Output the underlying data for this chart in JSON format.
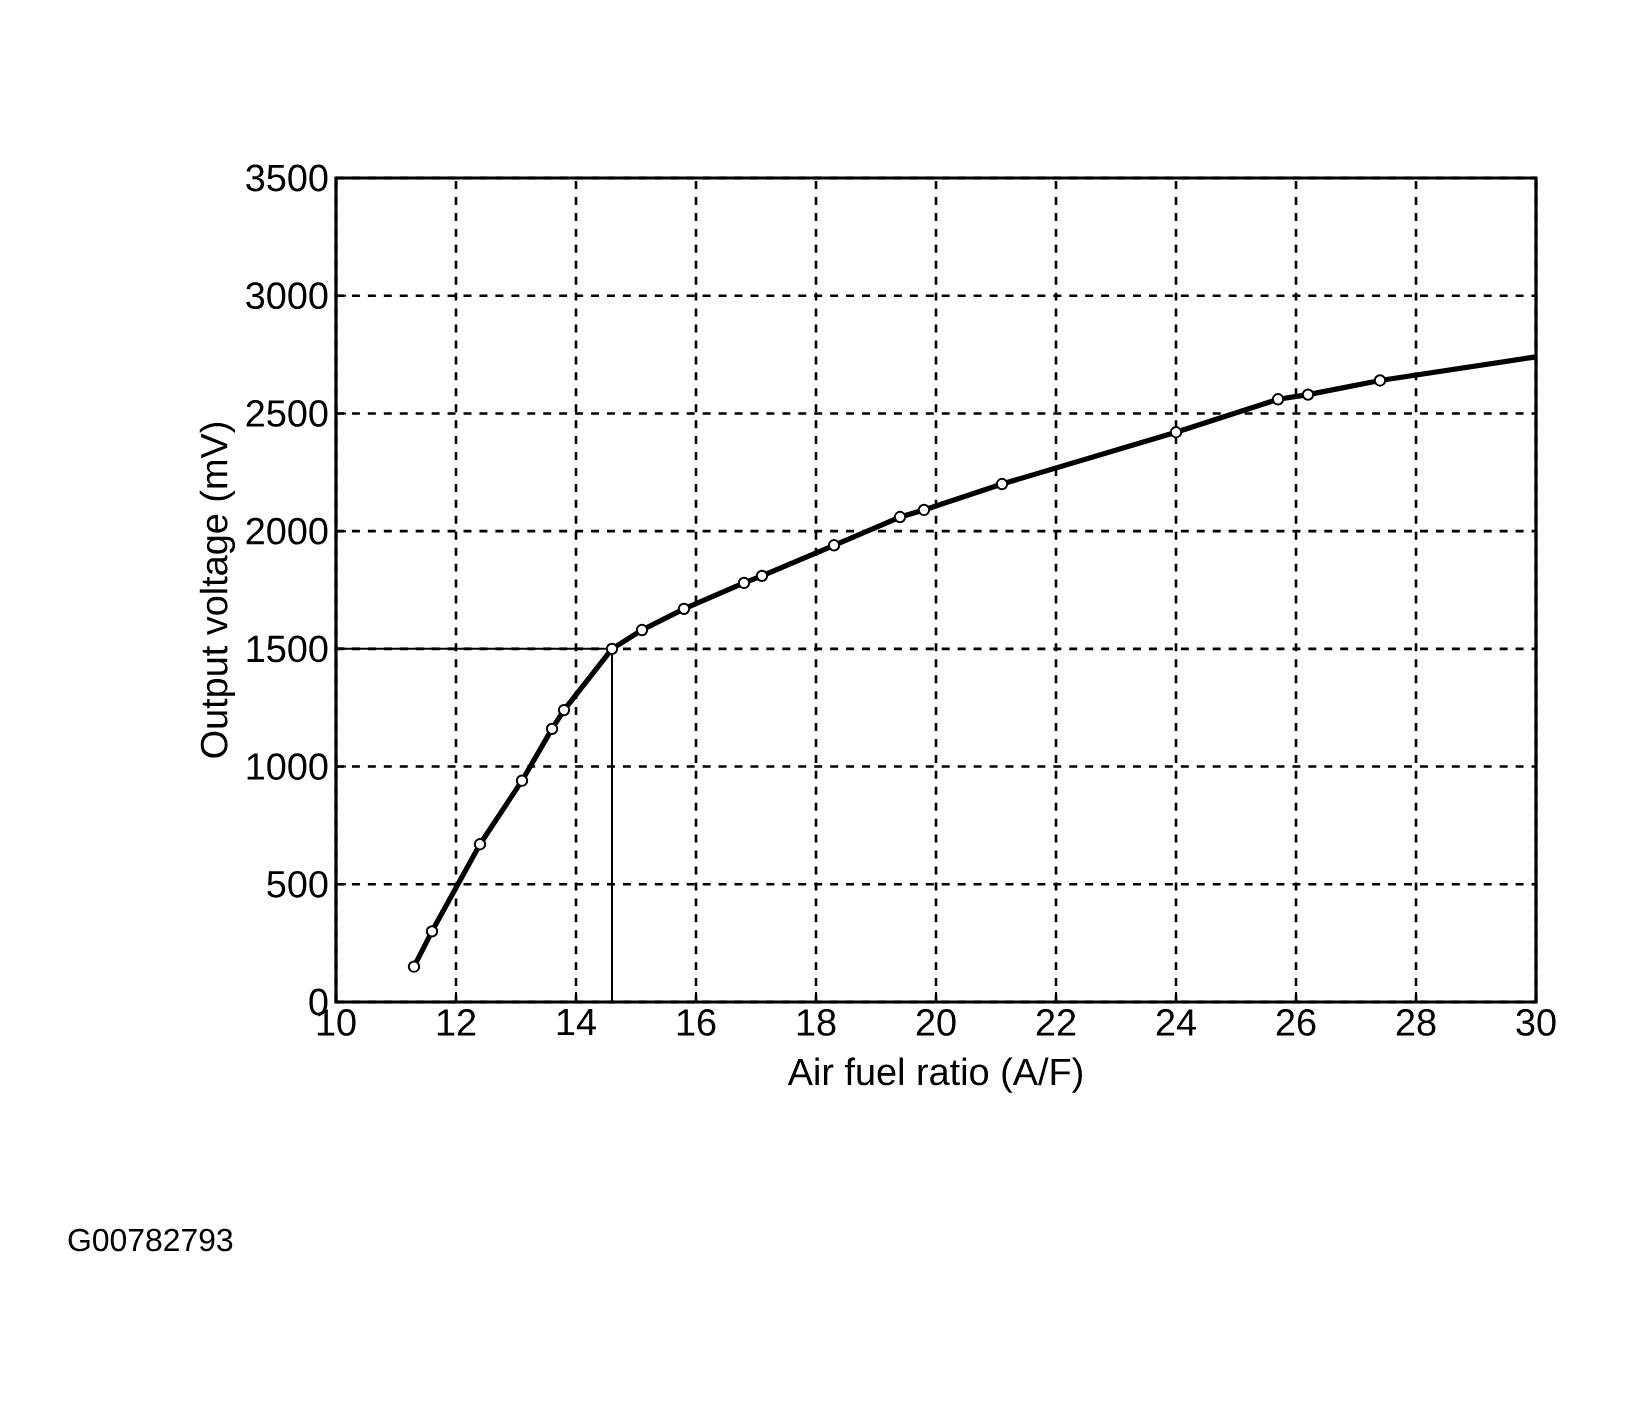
{
  "chart_data": {
    "type": "line",
    "xlabel": "Air fuel ratio (A/F)",
    "ylabel": "Output voltage (mV)",
    "xlim": [
      10,
      30
    ],
    "ylim": [
      0,
      3500
    ],
    "xticks": [
      10,
      12,
      14,
      16,
      18,
      20,
      22,
      24,
      26,
      28,
      30
    ],
    "yticks": [
      0,
      500,
      1000,
      1500,
      2000,
      2500,
      3000,
      3500
    ],
    "grid": true,
    "series": [
      {
        "color": "#000000",
        "marker": "circle",
        "x": [
          11.3,
          11.6,
          12.4,
          13.1,
          13.6,
          13.8,
          14.6,
          15.1,
          15.8,
          16.8,
          17.1,
          18.3,
          19.4,
          19.8,
          21.1,
          24.0,
          25.7,
          26.2,
          27.4
        ],
        "values": [
          150,
          300,
          670,
          940,
          1160,
          1240,
          1500,
          1580,
          1670,
          1780,
          1810,
          1940,
          2060,
          2090,
          2200,
          2420,
          2560,
          2580,
          2640
        ]
      },
      {
        "color": "#000000",
        "marker": "none",
        "x": [
          27.4,
          30
        ],
        "values": [
          2640,
          2740
        ]
      },
      {
        "color": "#000000",
        "marker": "none",
        "x": [
          10,
          14.6,
          14.6
        ],
        "values": [
          1500,
          1500,
          0
        ]
      }
    ],
    "annotations": [
      "G00782793"
    ]
  }
}
